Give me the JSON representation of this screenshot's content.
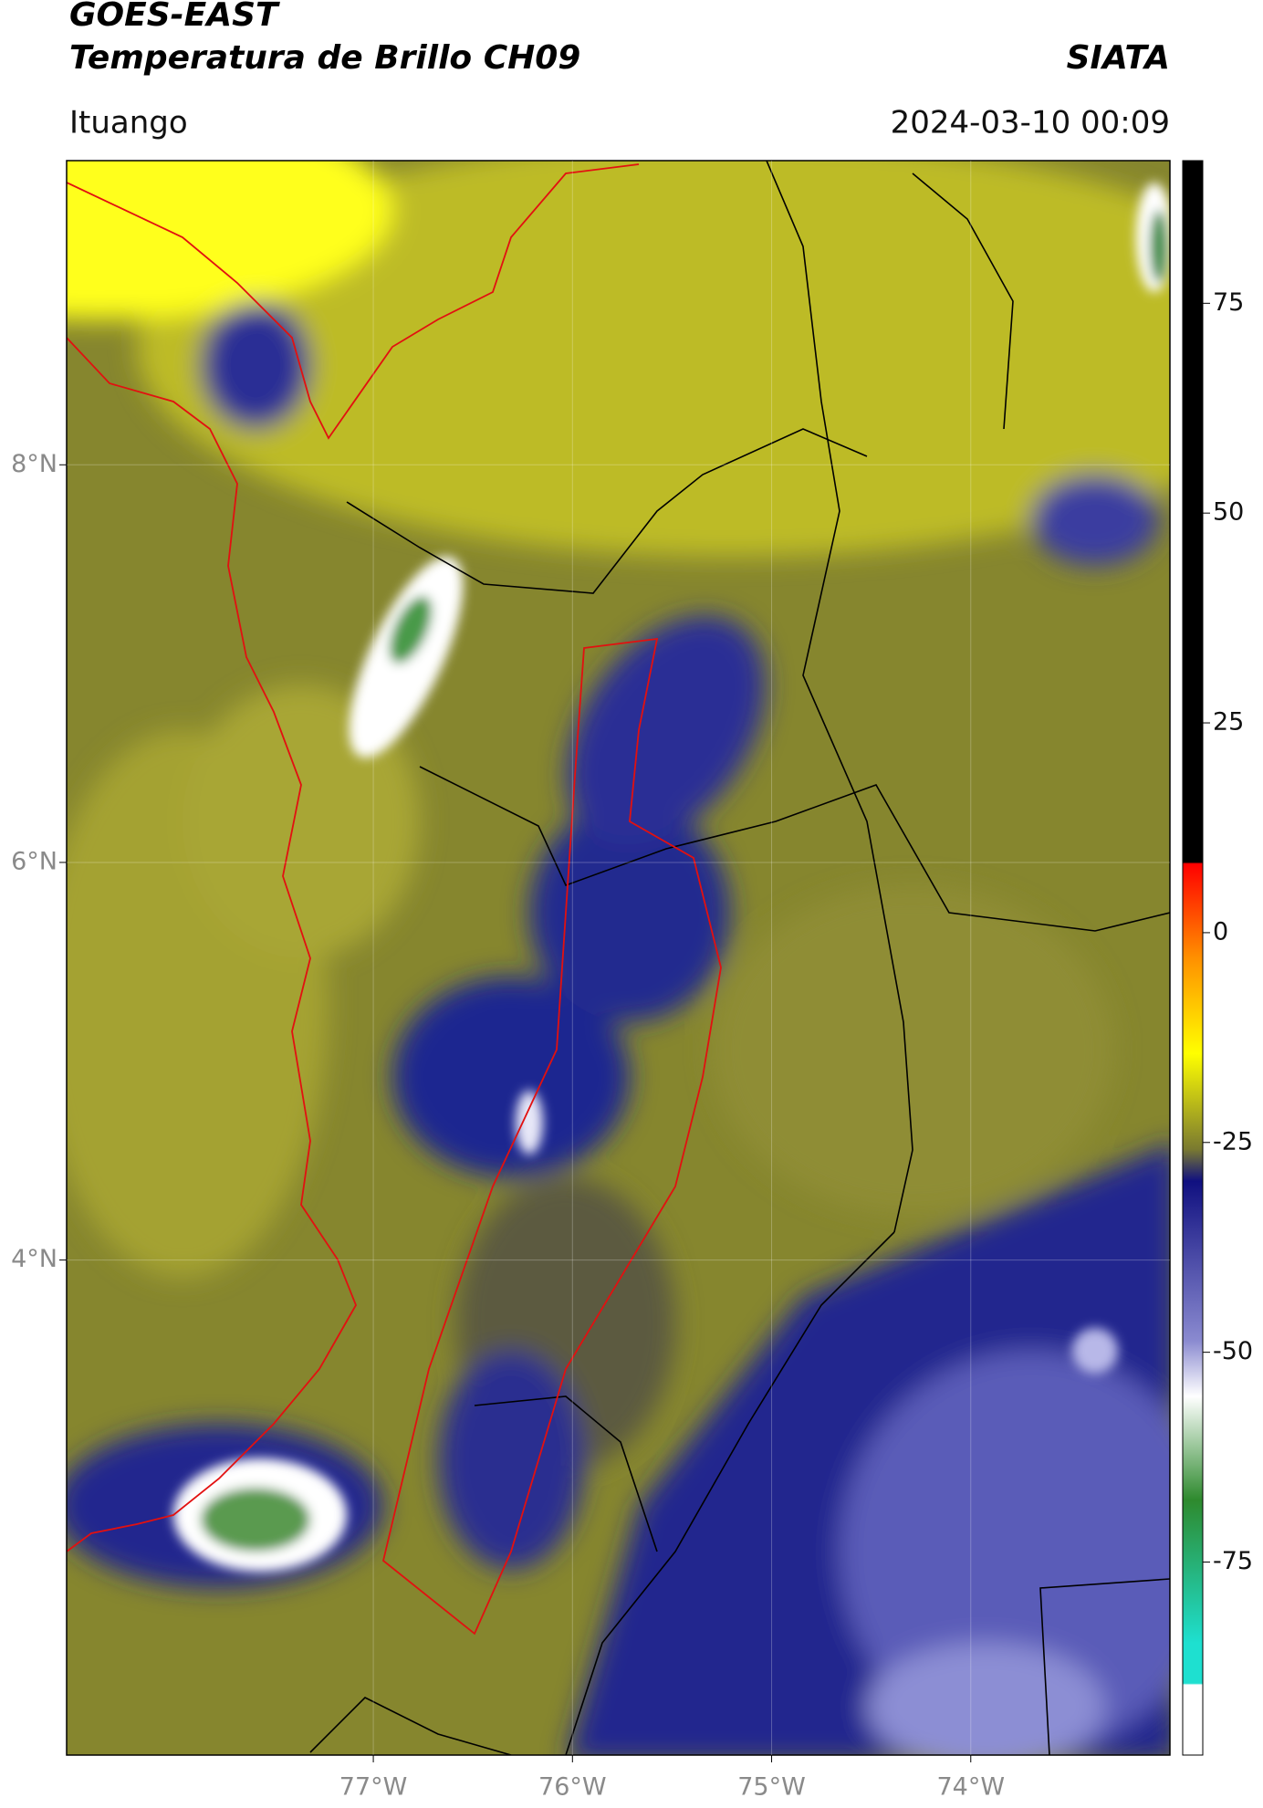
{
  "title": "GOES-EAST",
  "subtitle": "Temperatura de Brillo CH09",
  "source": "SIATA",
  "location": "Ituango",
  "datetime": "2024-03-10 00:09",
  "map": {
    "xlim": [
      -78.54,
      -73.0
    ],
    "ylim": [
      1.51,
      9.53
    ],
    "xticks": [
      {
        "value": -77,
        "label": "77°W"
      },
      {
        "value": -76,
        "label": "76°W"
      },
      {
        "value": -75,
        "label": "75°W"
      },
      {
        "value": -74,
        "label": "74°W"
      }
    ],
    "yticks": [
      {
        "value": 8,
        "label": "8°N"
      },
      {
        "value": 6,
        "label": "6°N"
      },
      {
        "value": 4,
        "label": "4°N"
      }
    ],
    "grid": true
  },
  "colorbar": {
    "lim": [
      -98,
      92
    ],
    "ticks": [
      75,
      50,
      25,
      0,
      -25,
      -50,
      -75
    ]
  }
}
